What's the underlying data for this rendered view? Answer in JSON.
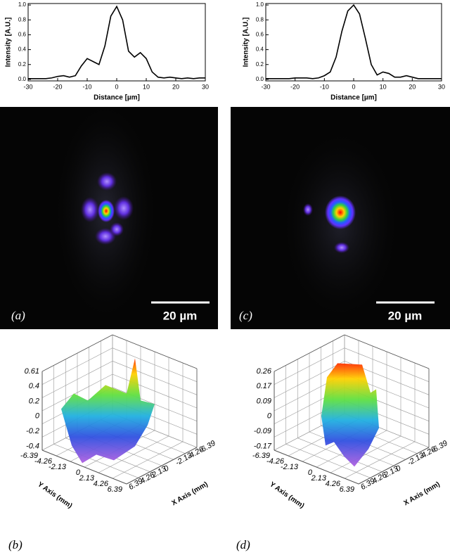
{
  "chart_data": [
    {
      "type": "line",
      "x_label": "Distance [µm]",
      "y_label": "Intensity [A.U.]",
      "color": "#000000",
      "x": [
        -30,
        -28,
        -26,
        -24,
        -22,
        -20,
        -18,
        -16,
        -14,
        -12,
        -10,
        -8,
        -6,
        -4,
        -2,
        0,
        2,
        4,
        6,
        8,
        10,
        12,
        14,
        16,
        18,
        20,
        22,
        24,
        26,
        28,
        30
      ],
      "values": [
        0.01,
        0.01,
        0.01,
        0.01,
        0.02,
        0.04,
        0.05,
        0.03,
        0.05,
        0.18,
        0.28,
        0.24,
        0.2,
        0.45,
        0.85,
        0.98,
        0.8,
        0.38,
        0.3,
        0.36,
        0.28,
        0.1,
        0.03,
        0.02,
        0.03,
        0.02,
        0.01,
        0.02,
        0.01,
        0.02,
        0.02
      ],
      "xlim": [
        -30,
        30
      ],
      "xticks": [
        -30,
        -20,
        -10,
        0,
        10,
        20,
        30
      ],
      "ylim": [
        -0.02,
        1.02
      ],
      "yticks": [
        {
          "value": 0,
          "label": "0.0"
        },
        0.2,
        0.4,
        0.6,
        0.8,
        {
          "value": 1,
          "label": "1.0"
        }
      ]
    },
    {
      "type": "line",
      "x_label": "Distance [µm]",
      "y_label": "Intensity [A.U.]",
      "color": "#000000",
      "x": [
        -30,
        -28,
        -26,
        -24,
        -22,
        -20,
        -18,
        -16,
        -14,
        -12,
        -10,
        -8,
        -6,
        -4,
        -2,
        0,
        2,
        4,
        6,
        8,
        10,
        12,
        14,
        16,
        18,
        20,
        22,
        24,
        26,
        28,
        30
      ],
      "values": [
        0.01,
        0.01,
        0.01,
        0.01,
        0.01,
        0.02,
        0.02,
        0.02,
        0.01,
        0.02,
        0.05,
        0.1,
        0.3,
        0.65,
        0.92,
        1.0,
        0.88,
        0.55,
        0.2,
        0.06,
        0.1,
        0.08,
        0.03,
        0.03,
        0.05,
        0.03,
        0.01,
        0.01,
        0.01,
        0.01,
        0.01
      ],
      "xlim": [
        -30,
        30
      ],
      "xticks": [
        -30,
        -20,
        -10,
        0,
        10,
        20,
        30
      ],
      "ylim": [
        -0.02,
        1.02
      ],
      "yticks": [
        {
          "value": 0,
          "label": "0.0"
        },
        0.2,
        0.4,
        0.6,
        0.8,
        {
          "value": 1,
          "label": "1.0"
        }
      ]
    }
  ],
  "images": [
    {
      "label": "(a)",
      "scale_bar": "20 µm"
    },
    {
      "label": "(c)",
      "scale_bar": "20 µm"
    }
  ],
  "surfaces": [
    {
      "label": "(b)",
      "z_ticks": [
        0.61,
        0.4,
        0.2,
        0,
        -0.2,
        -0.4
      ],
      "y_axis_label": "Y Axis (mm)",
      "x_axis_label": "X Axis (mm)",
      "y_ticks": [
        -6.39,
        -4.26,
        -2.13,
        0,
        2.13,
        4.26,
        6.39
      ],
      "x_ticks": [
        6.39,
        4.26,
        2.13,
        0,
        -2.13,
        -4.26,
        -6.39
      ]
    },
    {
      "label": "(d)",
      "z_ticks": [
        0.26,
        0.17,
        0.09,
        0,
        -0.09,
        -0.17
      ],
      "y_axis_label": "Y Axis (mm)",
      "x_axis_label": "X Axis (mm)",
      "y_ticks": [
        -6.39,
        -4.26,
        -2.13,
        0,
        2.13,
        4.26,
        6.39
      ],
      "x_ticks": [
        6.39,
        4.26,
        2.13,
        0,
        -2.13,
        -4.26,
        -6.39
      ]
    }
  ]
}
